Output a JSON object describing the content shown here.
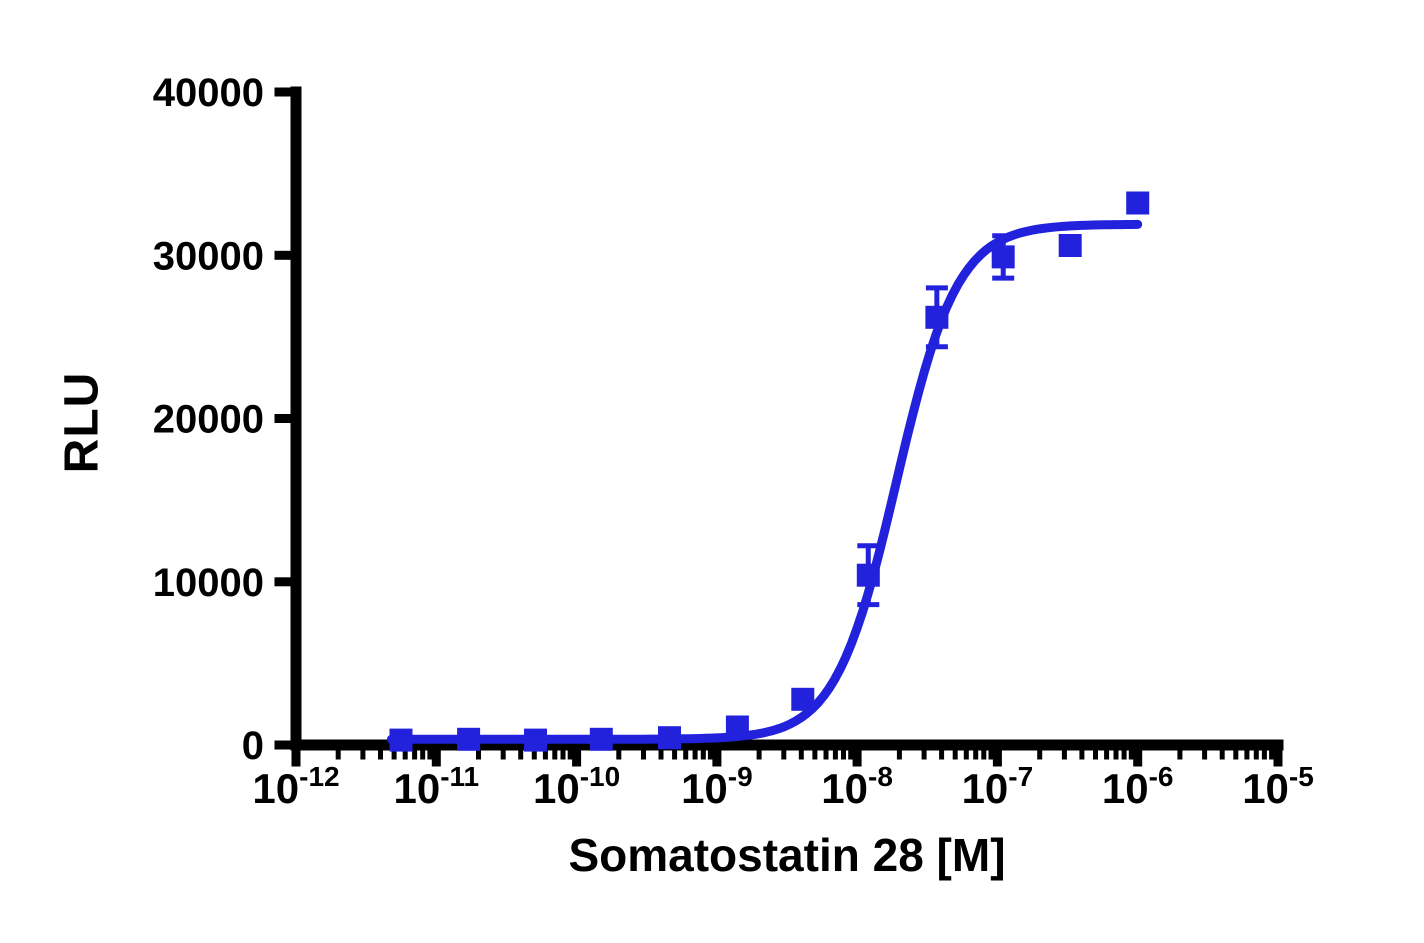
{
  "chart_data": {
    "type": "scatter",
    "title": "",
    "xlabel": "Somatostatin 28 [M]",
    "ylabel": "RLU",
    "x_scale": "log",
    "xlim_log": [
      -12,
      -5
    ],
    "ylim": [
      0,
      40000
    ],
    "y_ticks": [
      0,
      10000,
      20000,
      30000,
      40000
    ],
    "y_tick_labels": [
      "0",
      "10000",
      "20000",
      "30000",
      "40000"
    ],
    "x_major_ticks_log": [
      -12,
      -11,
      -10,
      -9,
      -8,
      -7,
      -6,
      -5
    ],
    "x_tick_labels": [
      {
        "log": -12,
        "text": "10",
        "exp": "-12"
      },
      {
        "log": -11,
        "text": "10",
        "exp": "-11"
      },
      {
        "log": -10,
        "text": "10",
        "exp": "-10"
      },
      {
        "log": -9,
        "text": "10",
        "exp": "-9"
      },
      {
        "log": -8,
        "text": "10",
        "exp": "-8"
      },
      {
        "log": -7,
        "text": "10",
        "exp": "-7"
      },
      {
        "log": -6,
        "text": "10",
        "exp": "-6"
      },
      {
        "log": -5,
        "text": "10",
        "exp": "-5"
      }
    ],
    "grid": false,
    "legend": "none",
    "style": {
      "series_color": "#2222DD",
      "axis_color": "#000000",
      "marker": "square",
      "marker_size": 23,
      "curve_width": 9
    },
    "series": [
      {
        "name": "Somatostatin 28",
        "points": [
          {
            "conc": 5.6e-12,
            "rlu": 300,
            "sem": 0
          },
          {
            "conc": 1.7e-11,
            "rlu": 350,
            "sem": 0
          },
          {
            "conc": 5.1e-11,
            "rlu": 300,
            "sem": 0
          },
          {
            "conc": 1.5e-10,
            "rlu": 350,
            "sem": 0
          },
          {
            "conc": 4.6e-10,
            "rlu": 450,
            "sem": 0
          },
          {
            "conc": 1.4e-09,
            "rlu": 1100,
            "sem": 0
          },
          {
            "conc": 4.1e-09,
            "rlu": 2800,
            "sem": 0
          },
          {
            "conc": 1.2e-08,
            "rlu": 10400,
            "sem": 1800
          },
          {
            "conc": 3.7e-08,
            "rlu": 26200,
            "sem": 1800
          },
          {
            "conc": 1.1e-07,
            "rlu": 29900,
            "sem": 1300
          },
          {
            "conc": 3.3e-07,
            "rlu": 30600,
            "sem": 0
          },
          {
            "conc": 1e-06,
            "rlu": 33200,
            "sem": 0
          }
        ],
        "fit": {
          "model": "sigmoidal dose-response",
          "bottom": 350,
          "top": 31900,
          "log_ec50": -7.72,
          "hill_slope": 2.0,
          "curve_log_range": [
            -11.32,
            -5.97
          ]
        }
      }
    ]
  }
}
